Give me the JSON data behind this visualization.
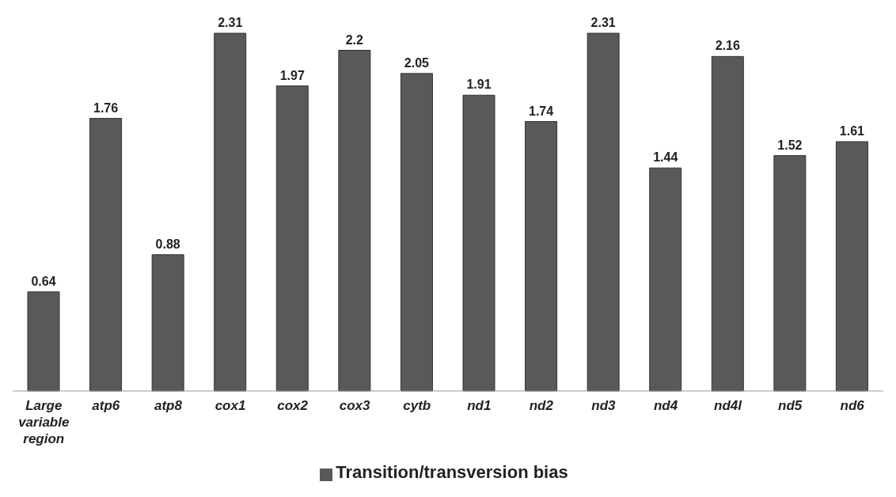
{
  "chart_data": {
    "type": "bar",
    "categories": [
      "Large variable region",
      "atp6",
      "atp8",
      "cox1",
      "cox2",
      "cox3",
      "cytb",
      "nd1",
      "nd2",
      "nd3",
      "nd4",
      "nd4l",
      "nd5",
      "nd6"
    ],
    "series": [
      {
        "name": "Transition/transversion bias",
        "color": "#595959",
        "values": [
          0.64,
          1.76,
          0.88,
          2.31,
          1.97,
          2.2,
          2.05,
          1.91,
          1.74,
          2.31,
          1.44,
          2.16,
          1.52,
          1.61
        ]
      }
    ],
    "data_labels": true,
    "legend": "bottom",
    "grid": false
  }
}
